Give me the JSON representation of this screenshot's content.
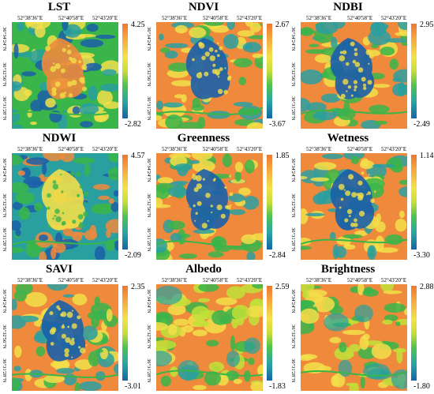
{
  "coords": {
    "lon": [
      "52°38'36\"E",
      "52°40'58\"E",
      "52°43'20\"E"
    ],
    "lat": [
      "36°34'24\"N",
      "36°32'56\"N",
      "36°31'28\"N"
    ]
  },
  "panels": [
    {
      "title": "LST",
      "max": "4.25",
      "min": "-2.82",
      "palette": "urban-hot"
    },
    {
      "title": "NDVI",
      "max": "2.67",
      "min": "-3.67",
      "palette": "veg"
    },
    {
      "title": "NDBI",
      "max": "2.95",
      "min": "-2.49",
      "palette": "veg"
    },
    {
      "title": "NDWI",
      "max": "4.57",
      "min": "-2.09",
      "palette": "water"
    },
    {
      "title": "Greenness",
      "max": "1.85",
      "min": "-2.84",
      "palette": "veg"
    },
    {
      "title": "Wetness",
      "max": "1.14",
      "min": "-3.30",
      "palette": "veg"
    },
    {
      "title": "SAVI",
      "max": "2.35",
      "min": "-3.01",
      "palette": "veg"
    },
    {
      "title": "Albedo",
      "max": "2.59",
      "min": "-1.83",
      "palette": "albedo"
    },
    {
      "title": "Brightness",
      "max": "2.88",
      "min": "-1.80",
      "palette": "albedo"
    }
  ],
  "colors": {
    "orange": "#ef8a3c",
    "yellow": "#f2df4a",
    "lime": "#bfe03a",
    "green": "#39b54a",
    "teal": "#2a9fa0",
    "blue": "#1b5fa8"
  }
}
